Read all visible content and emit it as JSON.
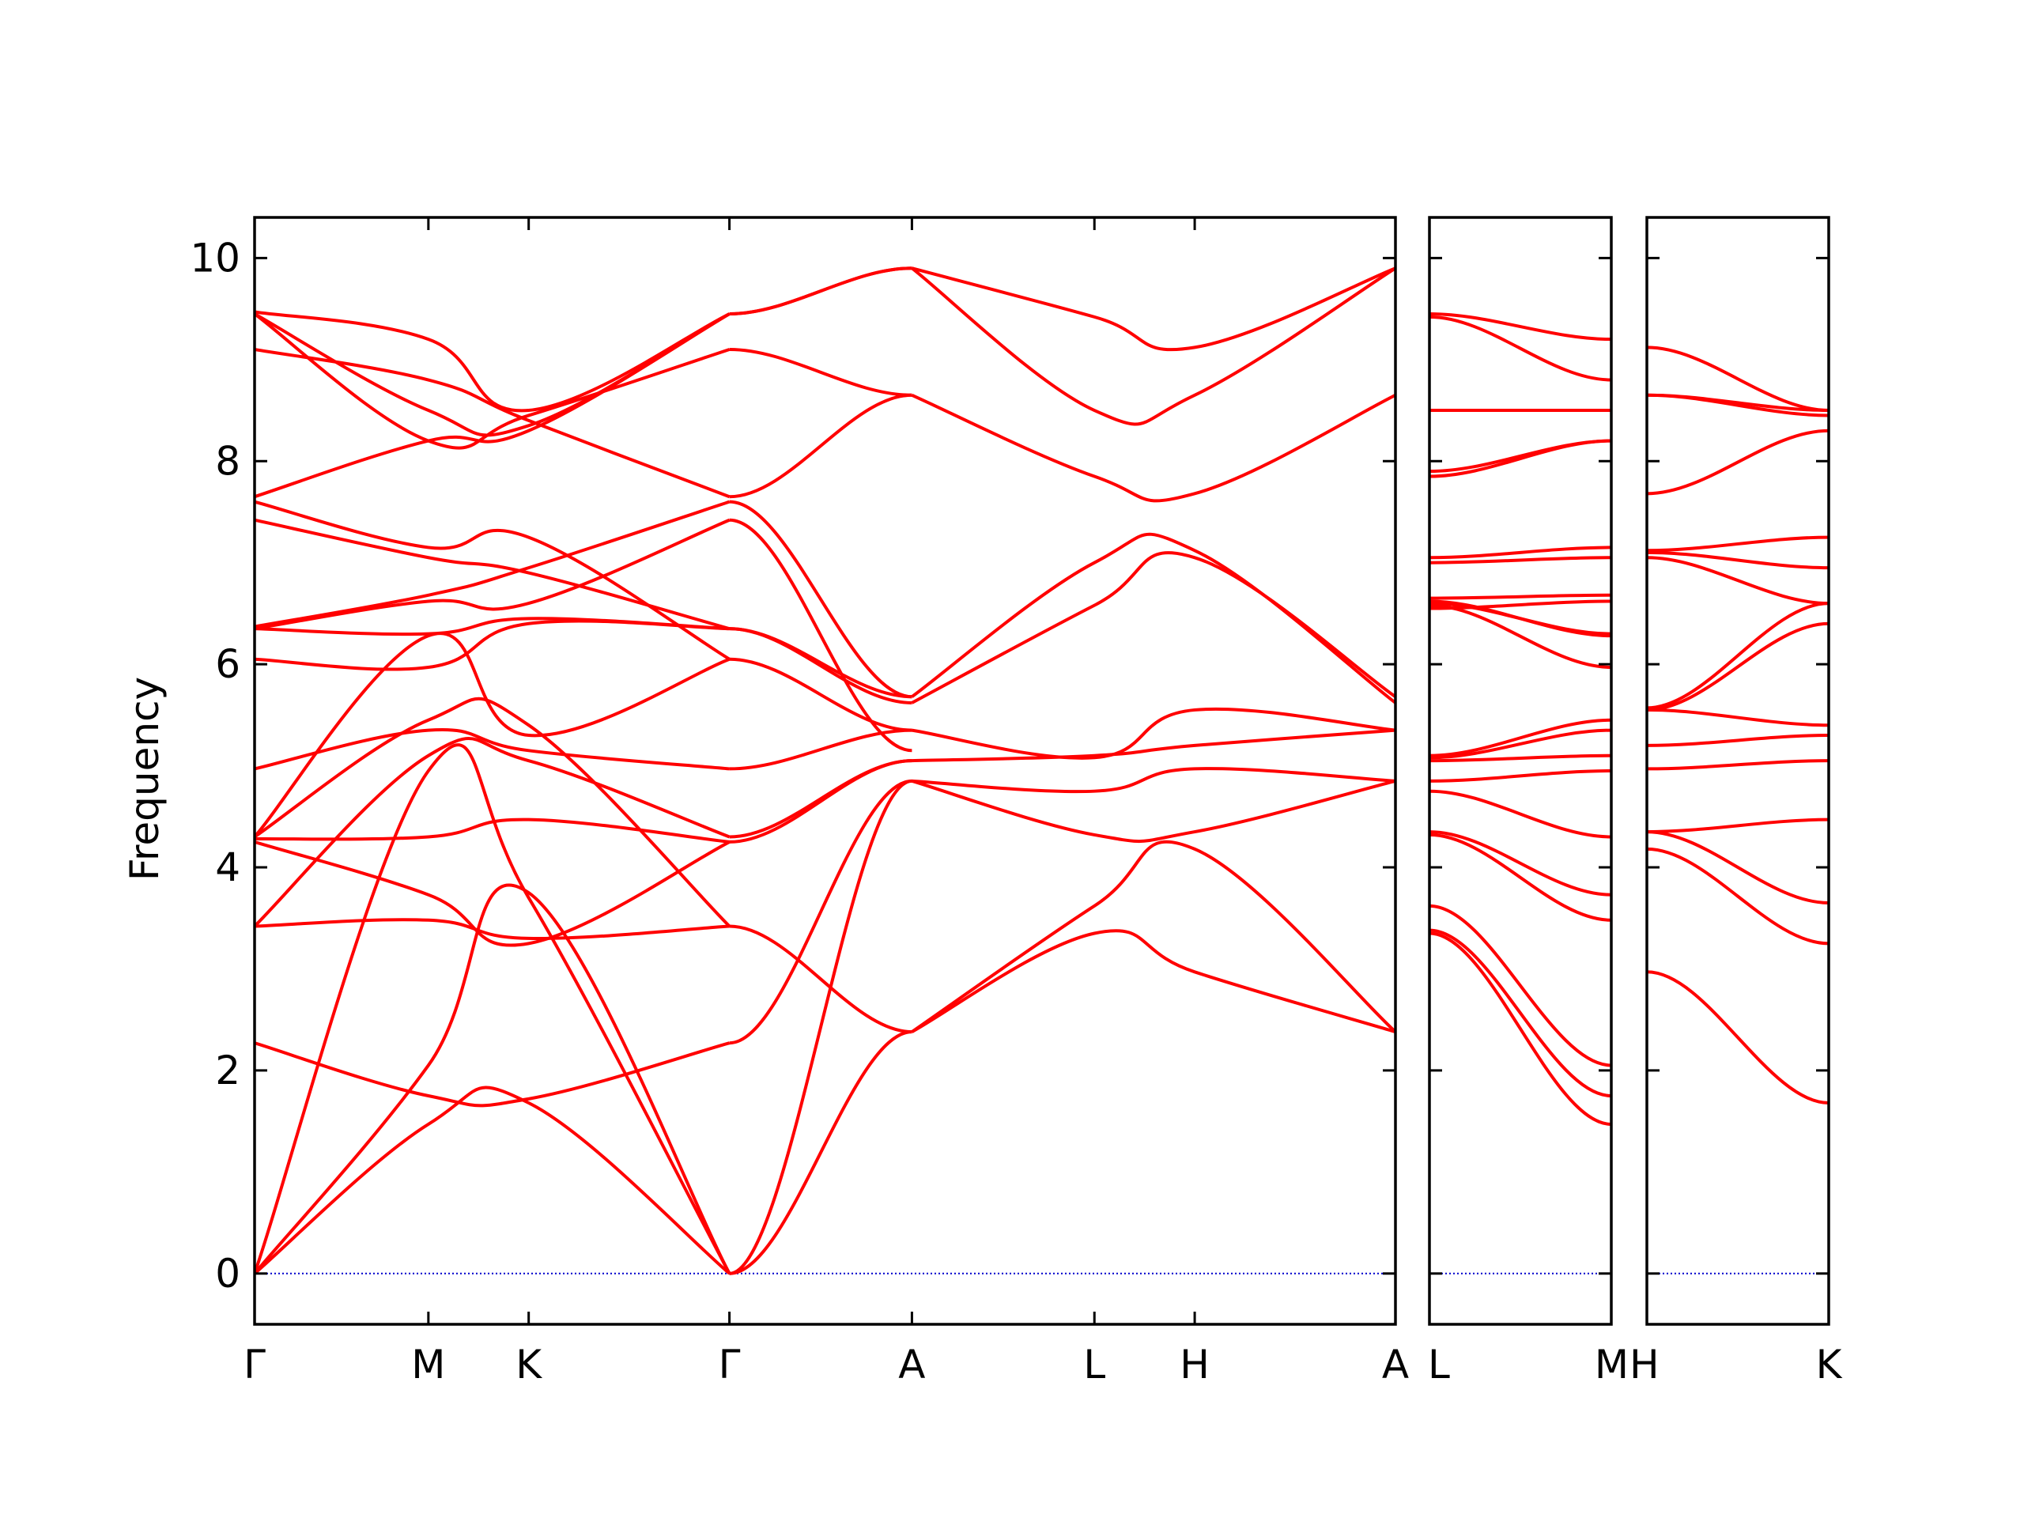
{
  "chart_data": {
    "type": "line",
    "title": "",
    "ylabel": "Frequency",
    "ylim": [
      -0.5,
      10.4
    ],
    "yticks": [
      0,
      2,
      4,
      6,
      8,
      10
    ],
    "zero_line_color": "#0000cc",
    "band_color": "#ff0000",
    "panels": [
      {
        "labels": [
          "Γ",
          "M",
          "K",
          "Γ",
          "A",
          "L",
          "H",
          "A"
        ],
        "nodes": [
          0,
          1,
          1.577,
          2.732,
          3.782,
          4.832,
          5.409,
          6.564
        ],
        "bands": [
          {
            "x": [
              0,
              1,
              1.577,
              2.732
            ],
            "y": [
              0,
              1.47,
              1.68,
              0
            ]
          },
          {
            "x": [
              0,
              1,
              1.577,
              2.732
            ],
            "y": [
              0,
              2.05,
              3.75,
              0
            ]
          },
          {
            "x": [
              0,
              1,
              1.577,
              2.732
            ],
            "y": [
              0,
              4.95,
              3.7,
              0
            ]
          },
          {
            "x": [
              0,
              1,
              1.577,
              2.732
            ],
            "y": [
              2.27,
              1.75,
              1.72,
              2.27
            ]
          },
          {
            "x": [
              0,
              1,
              1.577,
              2.732
            ],
            "y": [
              3.42,
              3.48,
              3.3,
              3.42
            ]
          },
          {
            "x": [
              0,
              1,
              1.577,
              2.732
            ],
            "y": [
              3.42,
              5.1,
              5.05,
              4.3
            ]
          },
          {
            "x": [
              0,
              1,
              1.577,
              2.732
            ],
            "y": [
              4.25,
              3.73,
              3.25,
              4.25
            ]
          },
          {
            "x": [
              0,
              1,
              1.577,
              2.732
            ],
            "y": [
              4.28,
              4.3,
              4.47,
              4.25
            ]
          },
          {
            "x": [
              0,
              1,
              1.577,
              2.732
            ],
            "y": [
              4.3,
              5.45,
              5.4,
              3.42
            ]
          },
          {
            "x": [
              0,
              1,
              1.577,
              2.732
            ],
            "y": [
              4.3,
              6.28,
              5.3,
              6.05
            ]
          },
          {
            "x": [
              0,
              1,
              1.577,
              2.732
            ],
            "y": [
              4.97,
              5.35,
              5.15,
              4.97
            ]
          },
          {
            "x": [
              0,
              1,
              1.577,
              2.732
            ],
            "y": [
              6.05,
              5.97,
              6.4,
              6.35
            ]
          },
          {
            "x": [
              0,
              1,
              1.577,
              2.732
            ],
            "y": [
              6.35,
              6.3,
              6.45,
              6.35
            ]
          },
          {
            "x": [
              0,
              1,
              1.577,
              2.732
            ],
            "y": [
              6.35,
              6.62,
              6.6,
              7.42
            ]
          },
          {
            "x": [
              0,
              1,
              1.577,
              2.732
            ],
            "y": [
              6.37,
              6.68,
              6.95,
              7.6
            ]
          },
          {
            "x": [
              0,
              1,
              1.577,
              2.732
            ],
            "y": [
              7.42,
              7.05,
              6.9,
              6.35
            ]
          },
          {
            "x": [
              0,
              1,
              1.577,
              2.732
            ],
            "y": [
              7.6,
              7.15,
              7.25,
              6.05
            ]
          },
          {
            "x": [
              0,
              1,
              1.577,
              2.732
            ],
            "y": [
              7.65,
              8.2,
              8.3,
              9.45
            ]
          },
          {
            "x": [
              0,
              1,
              1.577,
              2.732
            ],
            "y": [
              9.1,
              8.8,
              8.4,
              7.65
            ]
          },
          {
            "x": [
              0,
              1,
              1.577,
              2.732
            ],
            "y": [
              9.45,
              8.5,
              8.35,
              9.45
            ]
          },
          {
            "x": [
              0,
              1,
              1.577,
              2.732
            ],
            "y": [
              9.45,
              8.2,
              8.45,
              9.1
            ]
          },
          {
            "x": [
              0,
              1,
              1.577,
              2.732
            ],
            "y": [
              9.47,
              9.2,
              8.5,
              9.45
            ]
          },
          {
            "x": [
              2.732,
              3.782
            ],
            "y": [
              0,
              2.38
            ]
          },
          {
            "x": [
              2.732,
              3.782
            ],
            "y": [
              0,
              4.85
            ]
          },
          {
            "x": [
              2.732,
              3.782
            ],
            "y": [
              2.27,
              4.85
            ]
          },
          {
            "x": [
              2.732,
              3.782
            ],
            "y": [
              3.42,
              2.38
            ]
          },
          {
            "x": [
              2.732,
              3.782
            ],
            "y": [
              4.25,
              5.05
            ]
          },
          {
            "x": [
              2.732,
              3.782
            ],
            "y": [
              4.3,
              5.05
            ]
          },
          {
            "x": [
              2.732,
              3.782
            ],
            "y": [
              4.97,
              5.35
            ]
          },
          {
            "x": [
              2.732,
              3.782
            ],
            "y": [
              6.05,
              5.35
            ]
          },
          {
            "x": [
              2.732,
              3.782
            ],
            "y": [
              6.35,
              5.68
            ]
          },
          {
            "x": [
              2.732,
              3.782
            ],
            "y": [
              6.35,
              5.62
            ]
          },
          {
            "x": [
              2.732,
              3.782
            ],
            "y": [
              7.42,
              5.15
            ]
          },
          {
            "x": [
              2.732,
              3.782
            ],
            "y": [
              7.6,
              5.68
            ]
          },
          {
            "x": [
              2.732,
              3.782
            ],
            "y": [
              7.65,
              8.65
            ]
          },
          {
            "x": [
              2.732,
              3.782
            ],
            "y": [
              9.1,
              8.65
            ]
          },
          {
            "x": [
              2.732,
              3.782
            ],
            "y": [
              9.45,
              9.9
            ]
          },
          {
            "x": [
              2.732,
              3.782
            ],
            "y": [
              9.45,
              9.9
            ]
          },
          {
            "x": [
              3.782,
              4.832,
              5.409,
              6.564
            ],
            "y": [
              2.38,
              3.35,
              2.97,
              2.38
            ]
          },
          {
            "x": [
              3.782,
              4.832,
              5.409,
              6.564
            ],
            "y": [
              2.38,
              3.62,
              4.18,
              2.38
            ]
          },
          {
            "x": [
              3.782,
              4.832,
              5.409,
              6.564
            ],
            "y": [
              4.85,
              4.32,
              4.35,
              4.85
            ]
          },
          {
            "x": [
              3.782,
              4.832,
              5.409,
              6.564
            ],
            "y": [
              4.85,
              4.75,
              4.97,
              4.85
            ]
          },
          {
            "x": [
              3.782,
              4.832,
              5.409,
              6.564
            ],
            "y": [
              5.05,
              5.1,
              5.2,
              5.35
            ]
          },
          {
            "x": [
              3.782,
              4.832,
              5.409,
              6.564
            ],
            "y": [
              5.35,
              5.08,
              5.55,
              5.35
            ]
          },
          {
            "x": [
              3.782,
              4.832,
              5.409,
              6.564
            ],
            "y": [
              5.62,
              6.58,
              7.05,
              5.68
            ]
          },
          {
            "x": [
              3.782,
              4.832,
              5.409,
              6.564
            ],
            "y": [
              5.68,
              7.0,
              7.12,
              5.62
            ]
          },
          {
            "x": [
              3.782,
              4.832,
              5.409,
              6.564
            ],
            "y": [
              8.65,
              7.85,
              7.68,
              8.65
            ]
          },
          {
            "x": [
              3.782,
              4.832,
              5.409,
              6.564
            ],
            "y": [
              9.9,
              8.5,
              8.65,
              9.9
            ]
          },
          {
            "x": [
              3.782,
              4.832,
              5.409,
              6.564
            ],
            "y": [
              9.9,
              9.42,
              9.12,
              9.9
            ]
          }
        ]
      },
      {
        "labels": [
          "L",
          "M"
        ],
        "nodes": [
          0,
          1
        ],
        "bands": [
          {
            "x": [
              0,
              1
            ],
            "y": [
              3.35,
              1.47
            ]
          },
          {
            "x": [
              0,
              1
            ],
            "y": [
              3.38,
              1.75
            ]
          },
          {
            "x": [
              0,
              1
            ],
            "y": [
              3.62,
              2.05
            ]
          },
          {
            "x": [
              0,
              1
            ],
            "y": [
              4.32,
              3.48
            ]
          },
          {
            "x": [
              0,
              1
            ],
            "y": [
              4.35,
              3.73
            ]
          },
          {
            "x": [
              0,
              1
            ],
            "y": [
              4.75,
              4.3
            ]
          },
          {
            "x": [
              0,
              1
            ],
            "y": [
              4.85,
              4.95
            ]
          },
          {
            "x": [
              0,
              1
            ],
            "y": [
              5.05,
              5.1
            ]
          },
          {
            "x": [
              0,
              1
            ],
            "y": [
              5.08,
              5.35
            ]
          },
          {
            "x": [
              0,
              1
            ],
            "y": [
              5.1,
              5.45
            ]
          },
          {
            "x": [
              0,
              1
            ],
            "y": [
              6.58,
              5.97
            ]
          },
          {
            "x": [
              0,
              1
            ],
            "y": [
              6.62,
              6.28
            ]
          },
          {
            "x": [
              0,
              1
            ],
            "y": [
              6.6,
              6.3
            ]
          },
          {
            "x": [
              0,
              1
            ],
            "y": [
              6.55,
              6.62
            ]
          },
          {
            "x": [
              0,
              1
            ],
            "y": [
              6.65,
              6.68
            ]
          },
          {
            "x": [
              0,
              1
            ],
            "y": [
              7.0,
              7.05
            ]
          },
          {
            "x": [
              0,
              1
            ],
            "y": [
              7.05,
              7.15
            ]
          },
          {
            "x": [
              0,
              1
            ],
            "y": [
              7.85,
              8.2
            ]
          },
          {
            "x": [
              0,
              1
            ],
            "y": [
              7.9,
              8.2
            ]
          },
          {
            "x": [
              0,
              1
            ],
            "y": [
              8.5,
              8.5
            ]
          },
          {
            "x": [
              0,
              1
            ],
            "y": [
              9.42,
              8.8
            ]
          },
          {
            "x": [
              0,
              1
            ],
            "y": [
              9.45,
              9.2
            ]
          }
        ]
      },
      {
        "labels": [
          "H",
          "K"
        ],
        "nodes": [
          0,
          1
        ],
        "bands": [
          {
            "x": [
              0,
              1
            ],
            "y": [
              2.97,
              1.68
            ]
          },
          {
            "x": [
              0,
              1
            ],
            "y": [
              4.18,
              3.25
            ]
          },
          {
            "x": [
              0,
              1
            ],
            "y": [
              4.35,
              3.65
            ]
          },
          {
            "x": [
              0,
              1
            ],
            "y": [
              4.35,
              4.47
            ]
          },
          {
            "x": [
              0,
              1
            ],
            "y": [
              4.97,
              5.05
            ]
          },
          {
            "x": [
              0,
              1
            ],
            "y": [
              5.2,
              5.3
            ]
          },
          {
            "x": [
              0,
              1
            ],
            "y": [
              5.55,
              5.4
            ]
          },
          {
            "x": [
              0,
              1
            ],
            "y": [
              5.55,
              6.4
            ]
          },
          {
            "x": [
              0,
              1
            ],
            "y": [
              5.57,
              6.6
            ]
          },
          {
            "x": [
              0,
              1
            ],
            "y": [
              7.05,
              6.6
            ]
          },
          {
            "x": [
              0,
              1
            ],
            "y": [
              7.1,
              6.95
            ]
          },
          {
            "x": [
              0,
              1
            ],
            "y": [
              7.12,
              7.25
            ]
          },
          {
            "x": [
              0,
              1
            ],
            "y": [
              7.68,
              8.3
            ]
          },
          {
            "x": [
              0,
              1
            ],
            "y": [
              8.65,
              8.45
            ]
          },
          {
            "x": [
              0,
              1
            ],
            "y": [
              8.65,
              8.5
            ]
          },
          {
            "x": [
              0,
              1
            ],
            "y": [
              9.12,
              8.5
            ]
          }
        ]
      }
    ]
  }
}
